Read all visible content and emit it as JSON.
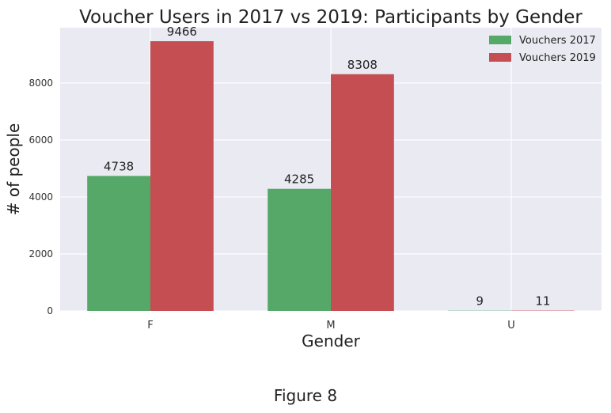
{
  "figure_caption": "Figure 8",
  "chart_data": {
    "type": "bar",
    "title": "Voucher Users in 2017 vs 2019: Participants by Gender",
    "xlabel": "Gender",
    "ylabel": "# of people",
    "categories": [
      "F",
      "M",
      "U"
    ],
    "series": [
      {
        "name": "Vouchers 2017",
        "values": [
          4738,
          4285,
          9
        ],
        "color": "#55a868"
      },
      {
        "name": "Vouchers 2019",
        "values": [
          9466,
          8308,
          11
        ],
        "color": "#c44e52"
      }
    ],
    "ylim": [
      0,
      9940
    ],
    "yticks": [
      0,
      2000,
      4000,
      6000,
      8000
    ],
    "grid": true,
    "legend_position": "top-right",
    "background": "#eaeaf2"
  }
}
